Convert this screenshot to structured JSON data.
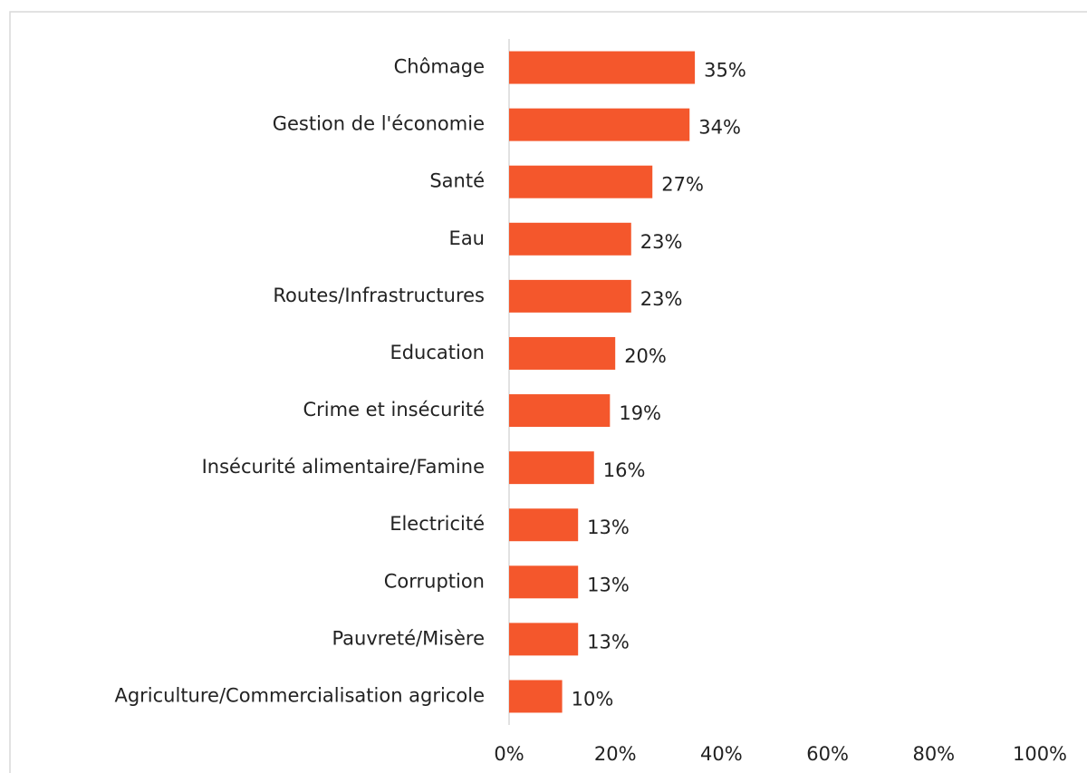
{
  "chart_data": {
    "type": "hbar",
    "categories": [
      "Chômage",
      "Gestion de l'économie",
      "Santé",
      "Eau",
      "Routes/Infrastructures",
      "Education",
      "Crime et insécurité",
      "Insécurité alimentaire/Famine",
      "Electricité",
      "Corruption",
      "Pauvreté/Misère",
      "Agriculture/Commercialisation agricole"
    ],
    "values": [
      35,
      34,
      27,
      23,
      23,
      20,
      19,
      16,
      13,
      13,
      13,
      10
    ],
    "value_labels": [
      "35%",
      "34%",
      "27%",
      "23%",
      "23%",
      "20%",
      "19%",
      "16%",
      "13%",
      "13%",
      "13%",
      "10%"
    ],
    "color": "#f4572c",
    "xlim": [
      0,
      100
    ],
    "xticks": [
      {
        "value": 0,
        "label": "0%"
      },
      {
        "value": 20,
        "label": "20%"
      },
      {
        "value": 40,
        "label": "40%"
      },
      {
        "value": 60,
        "label": "60%"
      },
      {
        "value": 80,
        "label": "80%"
      },
      {
        "value": 100,
        "label": "100%"
      }
    ]
  }
}
